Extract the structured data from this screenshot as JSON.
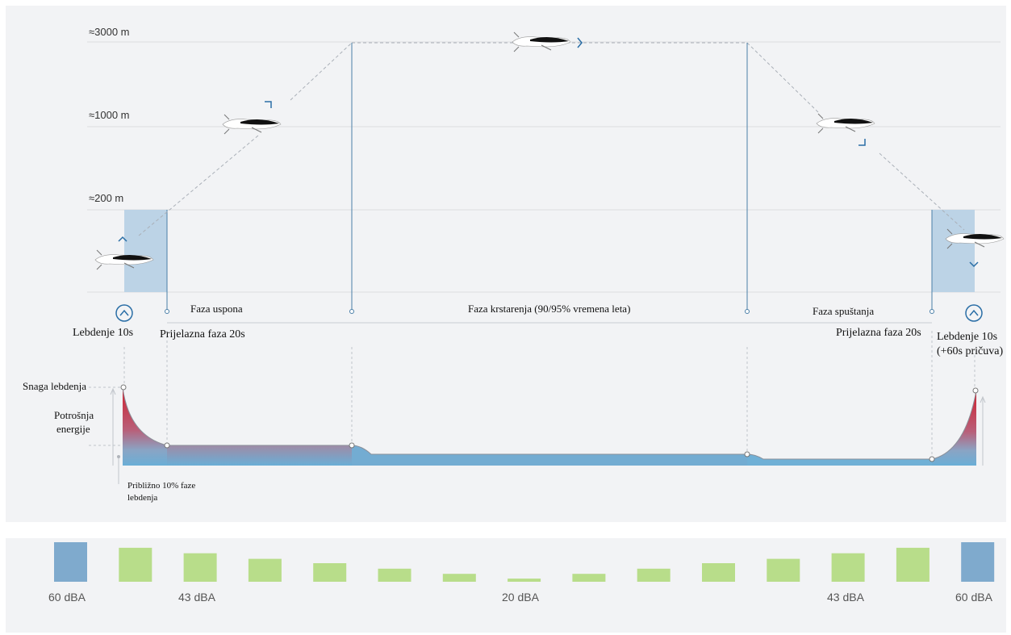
{
  "altitudes": [
    "≈3000 m",
    "≈1000 m",
    "≈200 m"
  ],
  "phases": {
    "hover_start": "Lebdenje 10s",
    "transition_start": "Prijelazna faza 20s",
    "climb": "Faza uspona",
    "cruise": "Faza krstarenja (90/95% vremena leta)",
    "descent": "Faza spuštanja",
    "transition_end": "Prijelazna faza 20s",
    "hover_end_line1": "Lebdenje 10s",
    "hover_end_line2": "(+60s pričuva)"
  },
  "energy": {
    "hover_power": "Snaga lebdenja",
    "consumption_line1": "Potrošnja",
    "consumption_line2": "energije",
    "note_line1": "Približno 10% faze",
    "note_line2": "lebdenja"
  },
  "colors": {
    "hover_zone": "#bcd3e6",
    "flight_line": "#4a7fa8",
    "energy_red": "#d0202e",
    "energy_blue": "#6aaed6",
    "bar_green": "#b8dd8a",
    "bar_blue": "#7faacd"
  },
  "noise": {
    "bars": [
      {
        "level": 1.0,
        "kind": "hover"
      },
      {
        "level": 0.86,
        "kind": "flight"
      },
      {
        "level": 0.72,
        "kind": "flight"
      },
      {
        "level": 0.58,
        "kind": "flight"
      },
      {
        "level": 0.47,
        "kind": "flight"
      },
      {
        "level": 0.33,
        "kind": "flight"
      },
      {
        "level": 0.2,
        "kind": "flight"
      },
      {
        "level": 0.08,
        "kind": "flight"
      },
      {
        "level": 0.2,
        "kind": "flight"
      },
      {
        "level": 0.33,
        "kind": "flight"
      },
      {
        "level": 0.47,
        "kind": "flight"
      },
      {
        "level": 0.58,
        "kind": "flight"
      },
      {
        "level": 0.72,
        "kind": "flight"
      },
      {
        "level": 0.86,
        "kind": "flight"
      },
      {
        "level": 1.0,
        "kind": "hover"
      }
    ],
    "labels": [
      "60 dBA",
      "43 dBA",
      "20 dBA",
      "43 dBA",
      "60 dBA"
    ]
  }
}
